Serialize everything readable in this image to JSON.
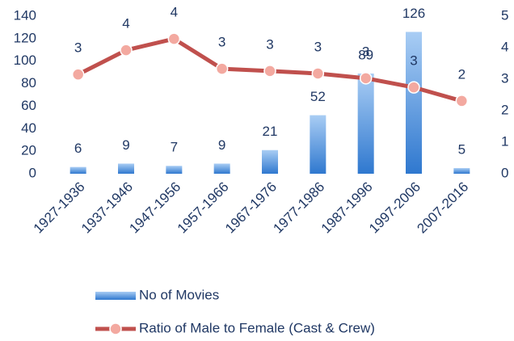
{
  "chart_data": {
    "type": "combo",
    "categories": [
      "1927-1936",
      "1937-1946",
      "1947-1956",
      "1957-1966",
      "1967-1976",
      "1977-1986",
      "1987-1996",
      "1997-2006",
      "2007-2016"
    ],
    "series": [
      {
        "name": "No of Movies",
        "type": "bar",
        "color": "#3a7fd0",
        "values": [
          6,
          9,
          7,
          9,
          21,
          52,
          89,
          126,
          5
        ]
      },
      {
        "name": "Ratio of Male to Female (Cast & Crew)",
        "type": "line",
        "axis": "y2",
        "color": "#c0504d",
        "values": [
          3.15,
          3.92,
          4.28,
          3.33,
          3.26,
          3.18,
          3.03,
          2.74,
          2.31
        ],
        "value_labels": [
          "3",
          "4",
          "4",
          "3",
          "3",
          "3",
          "3",
          "3",
          "2"
        ]
      }
    ],
    "ylim": [
      0,
      140
    ],
    "yticks": [
      0,
      20,
      40,
      60,
      80,
      100,
      120,
      140
    ],
    "y2lim": [
      0,
      5
    ],
    "y2ticks": [
      0,
      1,
      2,
      3,
      4,
      5
    ],
    "grid": false
  }
}
